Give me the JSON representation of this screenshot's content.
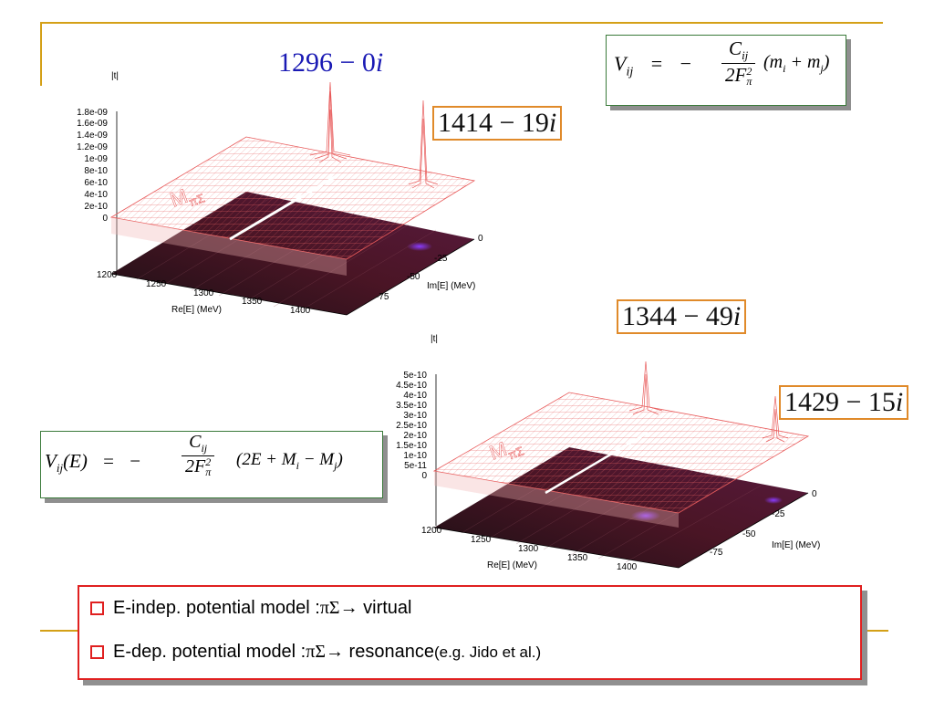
{
  "formula_top": {
    "lhs": "V",
    "lhs_sub": "ij",
    "eq": "=",
    "minus": "−",
    "num": "C",
    "num_sub": "ij",
    "den": "2F",
    "den_sup": "2",
    "den_sub": "π",
    "tail": "(m",
    "tail_i": "i",
    "plus": " + m",
    "tail_j": "j",
    "close": ")"
  },
  "formula_bottom": {
    "lhs": "V",
    "lhs_sub": "ij",
    "arg": "(E)",
    "eq": "=",
    "minus": "−",
    "num": "C",
    "num_sub": "ij",
    "den": "2F",
    "den_sup": "2",
    "den_sub": "π",
    "tail": "(2E + M",
    "tail_i": "i",
    "minus2": " − M",
    "tail_j": "j",
    "close": ")"
  },
  "pole_labels": {
    "p1": "1296 − 0",
    "p1_i": "i",
    "p2": "1414 − 19",
    "p2_i": "i",
    "p3": "1344 − 49",
    "p3_i": "i",
    "p4": "1429 − 15",
    "p4_i": "i"
  },
  "plot1": {
    "zlabel": "|t|",
    "zticks": [
      "1.8e-09",
      "1.6e-09",
      "1.4e-09",
      "1.2e-09",
      "1e-09",
      "8e-10",
      "6e-10",
      "4e-10",
      "2e-10",
      "0"
    ],
    "xticks": [
      "1200",
      "1250",
      "1300",
      "1350",
      "1400"
    ],
    "yticks": [
      "0",
      "-25",
      "-50",
      "-75"
    ],
    "xlabel": "Re[E] (MeV)",
    "ylabel": "Im[E] (MeV)",
    "threshold_label": "M",
    "threshold_sub": "πΣ"
  },
  "plot2": {
    "zlabel": "|t|",
    "zticks": [
      "5e-10",
      "4.5e-10",
      "4e-10",
      "3.5e-10",
      "3e-10",
      "2.5e-10",
      "2e-10",
      "1.5e-10",
      "1e-10",
      "5e-11",
      "0"
    ],
    "xticks": [
      "1200",
      "1250",
      "1300",
      "1350",
      "1400"
    ],
    "yticks": [
      "0",
      "-25",
      "-50",
      "-75"
    ],
    "xlabel": "Re[E] (MeV)",
    "ylabel": "Im[E] (MeV)",
    "threshold_label": "M",
    "threshold_sub": "πΣ"
  },
  "bullets": {
    "b1_pre": "E-indep. potential model : ",
    "b1_greek": "πΣ",
    "b1_post": " → virtual",
    "b2_pre": "E-dep. potential model : ",
    "b2_greek": "πΣ",
    "b2_post": " → resonance ",
    "b2_note": " (e.g. Jido et al.)"
  },
  "colors": {
    "accent_line": "#d4a017",
    "box_red": "#e02020",
    "pole_border": "#e08a2a",
    "blue_label": "#1a1ab4",
    "mesh": "#e85a5a"
  }
}
